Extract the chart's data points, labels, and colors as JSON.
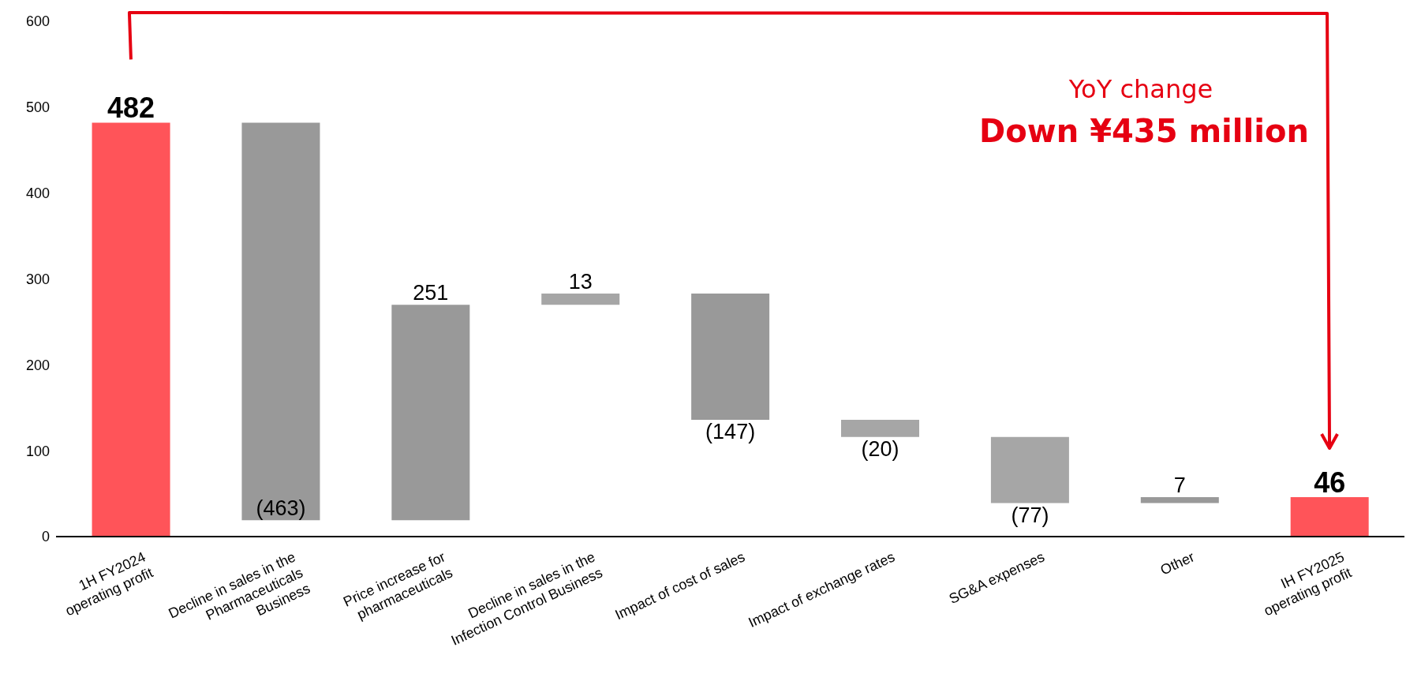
{
  "chart_data": {
    "type": "bar",
    "categories": [
      "1H FY2024\noperating profit",
      "Decline in sales in the\nPharmaceuticals\nBusiness",
      "Price increase for\npharmaceuticals",
      "Decline in sales in the\nInfection Control Business",
      "Impact of cost of sales",
      "Impact of exchange rates",
      "SG&A expenses",
      "Other",
      "IH FY2025\noperating profit"
    ],
    "values": [
      482,
      -463,
      251,
      13,
      -147,
      -20,
      -77,
      7,
      46
    ],
    "base": [
      0,
      482,
      19,
      270,
      283,
      136,
      116,
      39,
      0
    ],
    "colors": [
      "#ff5459",
      "#999999",
      "#999999",
      "#a6a6a6",
      "#999999",
      "#a6a6a6",
      "#a6a6a6",
      "#999999",
      "#ff5459"
    ],
    "value_labels": [
      "482",
      "(463)",
      "251",
      "13",
      "(147)",
      "(20)",
      "(77)",
      "7",
      "46"
    ],
    "ylim": [
      0,
      600
    ],
    "yticks": [
      0,
      100,
      200,
      300,
      400,
      500,
      600
    ],
    "annotations": [
      "YoY change",
      "Down ¥435 million"
    ]
  }
}
